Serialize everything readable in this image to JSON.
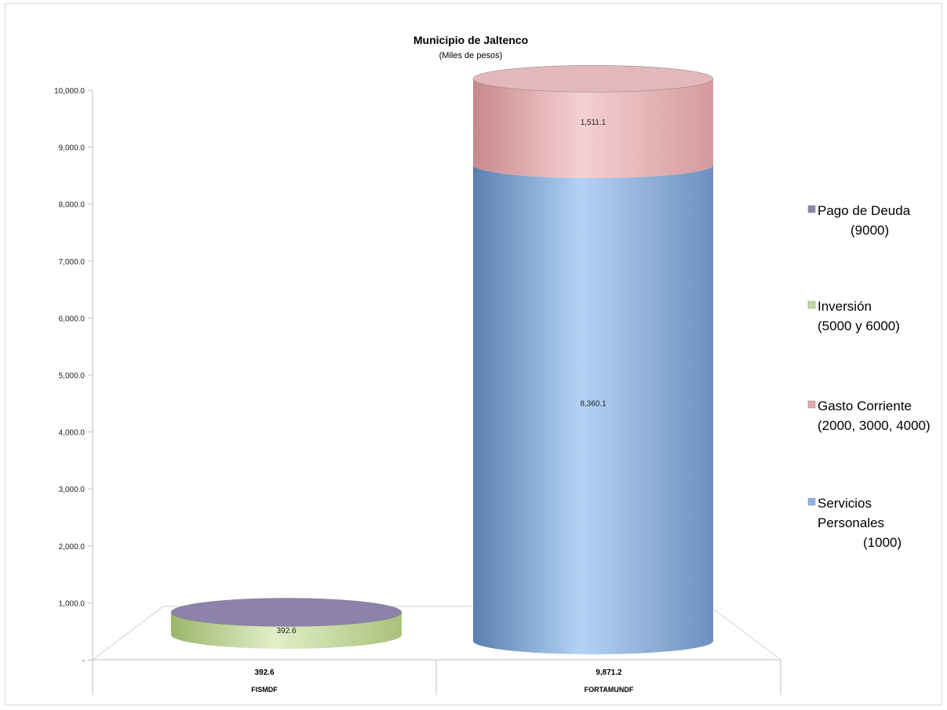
{
  "chart_data": {
    "type": "bar",
    "stacked": true,
    "title": "Municipio de Jaltenco",
    "subtitle": "(Miles de pesos)",
    "ylim": [
      0,
      10000
    ],
    "yticks": [
      "-",
      "1,000.0",
      "2,000.0",
      "3,000.0",
      "4,000.0",
      "5,000.0",
      "6,000.0",
      "7,000.0",
      "8,000.0",
      "9,000.0",
      "10,000.0"
    ],
    "categories": [
      "FISMDF",
      "FORTAMUNDF"
    ],
    "category_totals": [
      "392.6",
      "9,871.2"
    ],
    "series": [
      {
        "name": "Servicios Personales (1000)",
        "legend_lines": [
          "Servicios",
          "Personales",
          "(1000)"
        ],
        "color": "#8fb4e3",
        "values": [
          0,
          8360.1
        ],
        "labels": [
          "",
          "8,360.1"
        ]
      },
      {
        "name": "Gasto Corriente (2000, 3000, 4000)",
        "legend_lines": [
          "Gasto Corriente",
          "(2000, 3000, 4000)"
        ],
        "color": "#e6a8ab",
        "values": [
          0,
          1511.1
        ],
        "labels": [
          "",
          "1,511.1"
        ]
      },
      {
        "name": "Inversión (5000 y 6000)",
        "legend_lines": [
          "Inversión",
          "(5000 y 6000)"
        ],
        "color": "#c3d69b",
        "values": [
          392.6,
          0
        ],
        "labels": [
          "392.6",
          ""
        ]
      },
      {
        "name": "Pago de Deuda (9000)",
        "legend_lines": [
          "Pago de Deuda",
          "(9000)"
        ],
        "color": "#8c82aa",
        "values": [
          0,
          0
        ],
        "labels": [
          "",
          ""
        ]
      }
    ],
    "legend_position": "right",
    "legend_order": [
      3,
      2,
      1,
      0
    ],
    "grid": false
  }
}
